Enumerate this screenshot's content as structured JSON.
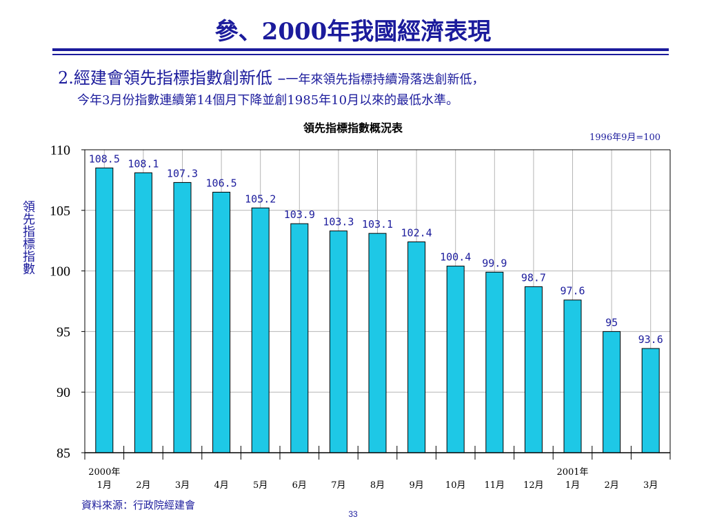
{
  "slide": {
    "title": "參、2000年我國經濟表現",
    "heading_main": "2.經建會領先指標指數創新低 –",
    "heading_sub": "一年來領先指標持續滑落迭創新低，",
    "heading_line2": "今年3月份指數連續第14個月下降並創1985年10月以來的最低水準。",
    "source": "資料來源：行政院經建會",
    "page_number": "33",
    "accent_color": "#1b1b9c"
  },
  "chart_data": {
    "type": "bar",
    "title": "領先指標指數概況表",
    "base_note": "1996年9月=100",
    "ylabel": "領先指標指數",
    "ylim": [
      85,
      110
    ],
    "yticks": [
      85,
      90,
      95,
      100,
      105,
      110
    ],
    "grid": true,
    "bar_color": "#1ec8e6",
    "categories": [
      "1月",
      "2月",
      "3月",
      "4月",
      "5月",
      "6月",
      "7月",
      "8月",
      "9月",
      "10月",
      "11月",
      "12月",
      "1月",
      "2月",
      "3月"
    ],
    "year_labels": [
      {
        "index": 0,
        "label": "2000年"
      },
      {
        "index": 12,
        "label": "2001年"
      }
    ],
    "values": [
      108.5,
      108.1,
      107.3,
      106.5,
      105.2,
      103.9,
      103.3,
      103.1,
      102.4,
      100.4,
      99.9,
      98.7,
      97.6,
      95,
      93.6
    ],
    "data_labels": [
      "108.5",
      "108.1",
      "107.3",
      "106.5",
      "105.2",
      "103.9",
      "103.3",
      "103.1",
      "102.4",
      "100.4",
      "99.9",
      "98.7",
      "97.6",
      "95",
      "93.6"
    ]
  }
}
